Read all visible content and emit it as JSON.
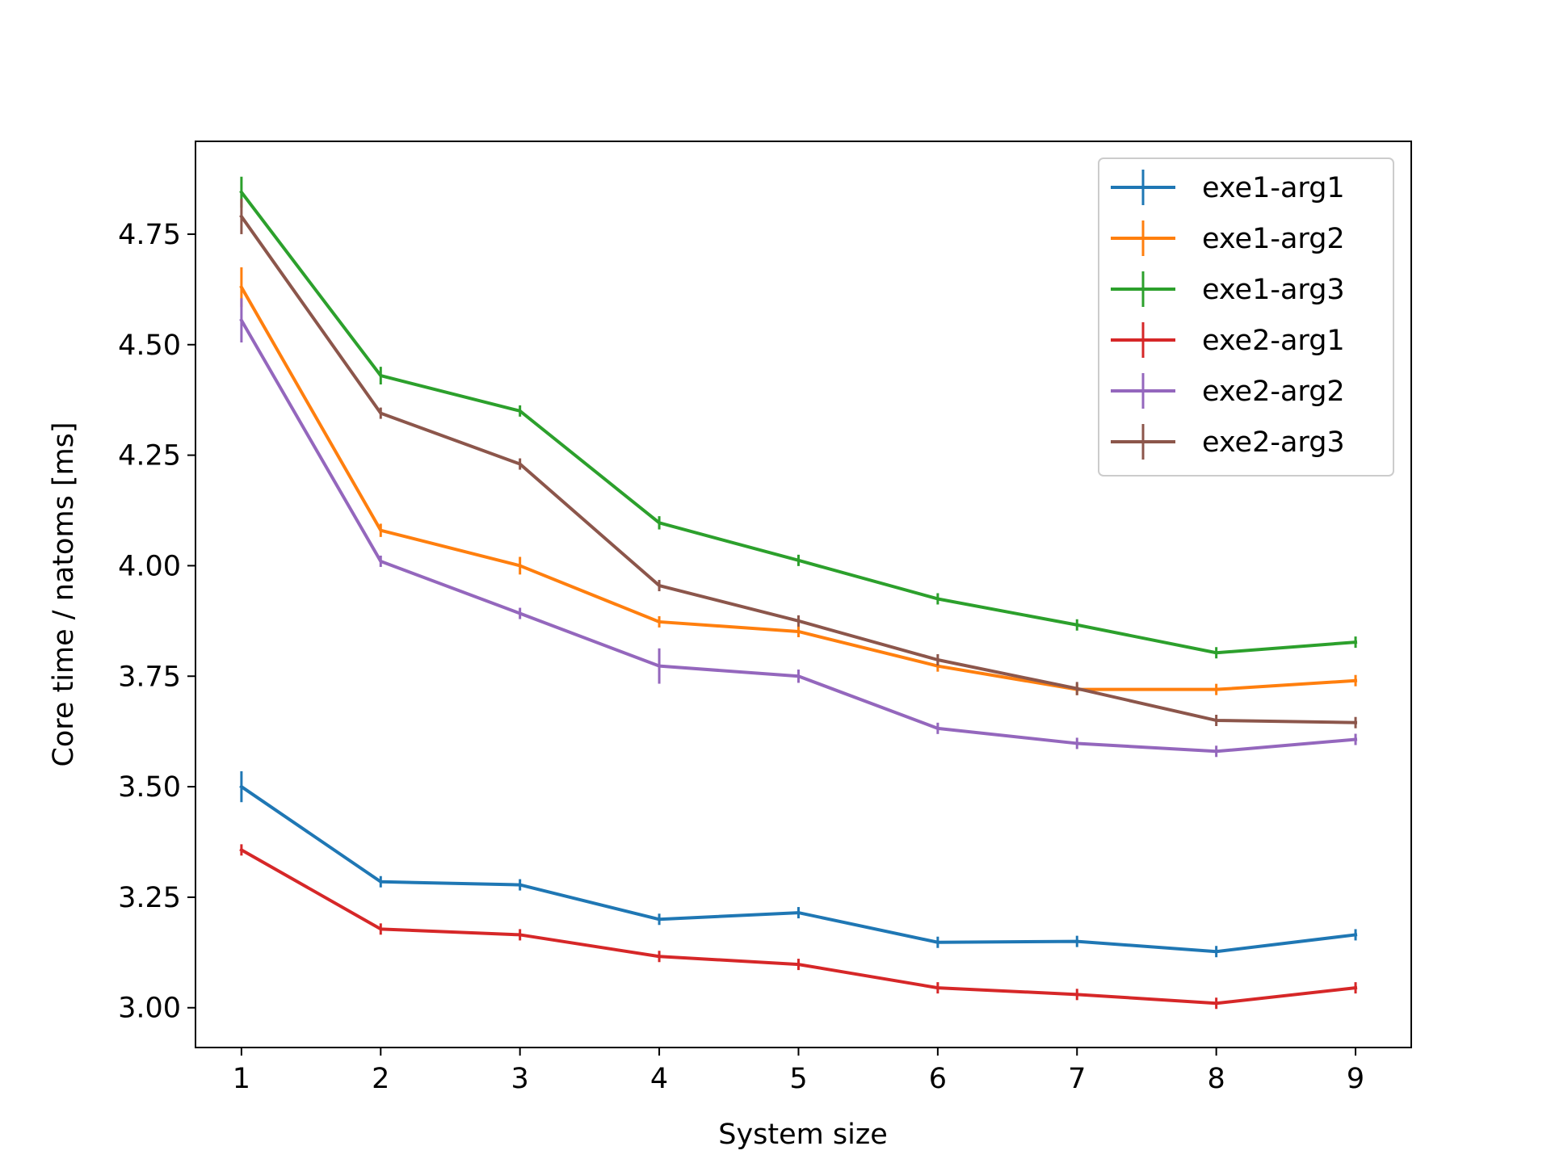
{
  "chart_data": {
    "type": "line",
    "title": "",
    "xlabel": "System size",
    "ylabel": "Core time / natoms [ms]",
    "xlim": [
      0.67,
      9.4
    ],
    "ylim": [
      2.91,
      4.96
    ],
    "xticks": [
      1,
      2,
      3,
      4,
      5,
      6,
      7,
      8,
      9
    ],
    "yticks": [
      3.0,
      3.25,
      3.5,
      3.75,
      4.0,
      4.25,
      4.5,
      4.75
    ],
    "grid": false,
    "legend_position": "top-right",
    "x": [
      1,
      2,
      3,
      4,
      5,
      6,
      7,
      8,
      9
    ],
    "series": [
      {
        "name": "exe1-arg1",
        "color": "#1f77b4",
        "values": [
          3.5,
          3.285,
          3.278,
          3.2,
          3.215,
          3.148,
          3.15,
          3.127,
          3.165
        ],
        "errors": [
          0.035,
          0.01,
          0.01,
          0.005,
          0.008,
          0.008,
          0.005,
          0.005,
          0.01
        ]
      },
      {
        "name": "exe1-arg2",
        "color": "#ff7f0e",
        "values": [
          4.63,
          4.08,
          4.0,
          3.873,
          3.851,
          3.773,
          3.72,
          3.72,
          3.74
        ],
        "errors": [
          0.045,
          0.015,
          0.02,
          0.01,
          0.01,
          0.005,
          0.005,
          0.008,
          0.01
        ]
      },
      {
        "name": "exe1-arg3",
        "color": "#2ca02c",
        "values": [
          4.845,
          4.43,
          4.35,
          4.097,
          4.012,
          3.925,
          3.866,
          3.803,
          3.827
        ],
        "errors": [
          0.035,
          0.02,
          0.01,
          0.015,
          0.01,
          0.012,
          0.008,
          0.005,
          0.008
        ]
      },
      {
        "name": "exe2-arg1",
        "color": "#d62728",
        "values": [
          3.357,
          3.178,
          3.165,
          3.116,
          3.098,
          3.045,
          3.03,
          3.01,
          3.045
        ],
        "errors": [
          0.008,
          0.008,
          0.005,
          0.008,
          0.005,
          0.008,
          0.005,
          0.005,
          0.005
        ]
      },
      {
        "name": "exe2-arg2",
        "color": "#9467bd",
        "values": [
          4.555,
          4.01,
          3.892,
          3.773,
          3.75,
          3.632,
          3.598,
          3.58,
          3.607
        ],
        "errors": [
          0.05,
          0.012,
          0.012,
          0.04,
          0.015,
          0.008,
          0.01,
          0.01,
          0.005
        ]
      },
      {
        "name": "exe2-arg3",
        "color": "#8c564b",
        "values": [
          4.79,
          4.345,
          4.23,
          3.955,
          3.875,
          3.787,
          3.722,
          3.65,
          3.645
        ],
        "errors": [
          0.04,
          0.012,
          0.005,
          0.008,
          0.012,
          0.008,
          0.015,
          0.008,
          0.005
        ]
      }
    ]
  }
}
